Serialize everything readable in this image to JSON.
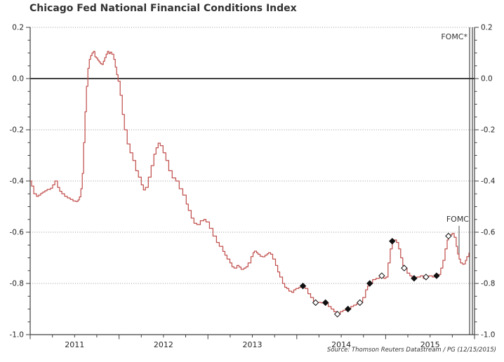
{
  "title": "Chicago Fed National Financial Conditions Index",
  "source_note": "Source: Thomson Reuters Datastream / PG (12/15/2015)",
  "annotations": {
    "fomc_upcoming_label": "FOMC*",
    "fomc_meeting_label": "FOMC"
  },
  "colors": {
    "line": "#c0504d",
    "axis": "#3f3f3f",
    "gridline": "#999999",
    "zero_line": "#000000",
    "marker_filled": "#111111",
    "marker_hollow_fill": "#ffffff",
    "annotation_line": "#4d4d4d",
    "text": "#262626"
  },
  "chart_data": {
    "type": "line",
    "title": "Chicago Fed National Financial Conditions Index",
    "xlabel": "",
    "ylabel": "",
    "legend": "none",
    "grid": "dotted horizontal",
    "x_axis": {
      "range": [
        2011.0,
        2016.0
      ],
      "year_labels": [
        "2011",
        "2012",
        "2013",
        "2014",
        "2015"
      ],
      "year_label_centers": [
        2011.5,
        2012.5,
        2013.5,
        2014.5,
        2015.5
      ],
      "minor_tick_step_years": 0.25,
      "major_tick_step_years": 1.0
    },
    "y_axis": {
      "range": [
        -1.0,
        0.2
      ],
      "tick_labels": [
        "0.2",
        "0.0",
        "-0.2",
        "-0.4",
        "-0.6",
        "-0.8",
        "-1.0"
      ],
      "tick_values": [
        0.2,
        0.0,
        -0.2,
        -0.4,
        -0.6,
        -0.8,
        -1.0
      ],
      "minor_tick_step": 0.05,
      "sides": [
        "left",
        "right"
      ],
      "zero_line_solid": true
    },
    "gridlines_dotted_at": [
      0.2,
      -0.2,
      -0.4,
      -0.6,
      -0.8
    ],
    "series": [
      {
        "name": "Chicago Fed National Financial Conditions Index (weekly)",
        "color": "#c0504d",
        "points": [
          [
            2011.0,
            -0.4
          ],
          [
            2011.016,
            -0.42
          ],
          [
            2011.04,
            -0.45
          ],
          [
            2011.071,
            -0.46
          ],
          [
            2011.095,
            -0.455
          ],
          [
            2011.119,
            -0.448
          ],
          [
            2011.142,
            -0.443
          ],
          [
            2011.166,
            -0.438
          ],
          [
            2011.19,
            -0.433
          ],
          [
            2011.229,
            -0.428
          ],
          [
            2011.253,
            -0.415
          ],
          [
            2011.277,
            -0.4
          ],
          [
            2011.308,
            -0.425
          ],
          [
            2011.332,
            -0.44
          ],
          [
            2011.356,
            -0.45
          ],
          [
            2011.388,
            -0.46
          ],
          [
            2011.419,
            -0.466
          ],
          [
            2011.451,
            -0.472
          ],
          [
            2011.482,
            -0.478
          ],
          [
            2011.514,
            -0.48
          ],
          [
            2011.538,
            -0.474
          ],
          [
            2011.554,
            -0.462
          ],
          [
            2011.57,
            -0.43
          ],
          [
            2011.586,
            -0.37
          ],
          [
            2011.601,
            -0.25
          ],
          [
            2011.617,
            -0.13
          ],
          [
            2011.633,
            -0.03
          ],
          [
            2011.649,
            0.04
          ],
          [
            2011.665,
            0.075
          ],
          [
            2011.68,
            0.09
          ],
          [
            2011.696,
            0.1
          ],
          [
            2011.712,
            0.106
          ],
          [
            2011.728,
            0.085
          ],
          [
            2011.744,
            0.08
          ],
          [
            2011.76,
            0.072
          ],
          [
            2011.775,
            0.065
          ],
          [
            2011.791,
            0.058
          ],
          [
            2011.807,
            0.055
          ],
          [
            2011.823,
            0.068
          ],
          [
            2011.839,
            0.082
          ],
          [
            2011.855,
            0.095
          ],
          [
            2011.87,
            0.106
          ],
          [
            2011.886,
            0.098
          ],
          [
            2011.902,
            0.103
          ],
          [
            2011.918,
            0.095
          ],
          [
            2011.941,
            0.075
          ],
          [
            2011.957,
            0.045
          ],
          [
            2011.973,
            0.015
          ],
          [
            2011.989,
            -0.01
          ],
          [
            2012.013,
            -0.065
          ],
          [
            2012.036,
            -0.14
          ],
          [
            2012.06,
            -0.2
          ],
          [
            2012.092,
            -0.255
          ],
          [
            2012.123,
            -0.29
          ],
          [
            2012.155,
            -0.32
          ],
          [
            2012.187,
            -0.36
          ],
          [
            2012.218,
            -0.385
          ],
          [
            2012.25,
            -0.415
          ],
          [
            2012.274,
            -0.435
          ],
          [
            2012.297,
            -0.425
          ],
          [
            2012.329,
            -0.385
          ],
          [
            2012.361,
            -0.34
          ],
          [
            2012.392,
            -0.295
          ],
          [
            2012.416,
            -0.27
          ],
          [
            2012.44,
            -0.252
          ],
          [
            2012.464,
            -0.262
          ],
          [
            2012.495,
            -0.29
          ],
          [
            2012.527,
            -0.32
          ],
          [
            2012.559,
            -0.36
          ],
          [
            2012.598,
            -0.388
          ],
          [
            2012.638,
            -0.4
          ],
          [
            2012.677,
            -0.43
          ],
          [
            2012.717,
            -0.455
          ],
          [
            2012.756,
            -0.49
          ],
          [
            2012.78,
            -0.515
          ],
          [
            2012.812,
            -0.545
          ],
          [
            2012.843,
            -0.565
          ],
          [
            2012.875,
            -0.57
          ],
          [
            2012.915,
            -0.555
          ],
          [
            2012.954,
            -0.55
          ],
          [
            2012.978,
            -0.56
          ],
          [
            2013.017,
            -0.585
          ],
          [
            2013.057,
            -0.615
          ],
          [
            2013.096,
            -0.64
          ],
          [
            2013.128,
            -0.655
          ],
          [
            2013.168,
            -0.675
          ],
          [
            2013.191,
            -0.69
          ],
          [
            2013.215,
            -0.705
          ],
          [
            2013.247,
            -0.72
          ],
          [
            2013.27,
            -0.735
          ],
          [
            2013.294,
            -0.74
          ],
          [
            2013.326,
            -0.73
          ],
          [
            2013.35,
            -0.736
          ],
          [
            2013.373,
            -0.745
          ],
          [
            2013.405,
            -0.74
          ],
          [
            2013.429,
            -0.735
          ],
          [
            2013.452,
            -0.72
          ],
          [
            2013.484,
            -0.695
          ],
          [
            2013.508,
            -0.68
          ],
          [
            2013.523,
            -0.674
          ],
          [
            2013.547,
            -0.68
          ],
          [
            2013.563,
            -0.686
          ],
          [
            2013.587,
            -0.694
          ],
          [
            2013.61,
            -0.696
          ],
          [
            2013.642,
            -0.69
          ],
          [
            2013.666,
            -0.684
          ],
          [
            2013.682,
            -0.68
          ],
          [
            2013.705,
            -0.686
          ],
          [
            2013.729,
            -0.705
          ],
          [
            2013.761,
            -0.73
          ],
          [
            2013.785,
            -0.755
          ],
          [
            2013.808,
            -0.775
          ],
          [
            2013.84,
            -0.8
          ],
          [
            2013.864,
            -0.815
          ],
          [
            2013.887,
            -0.82
          ],
          [
            2013.911,
            -0.83
          ],
          [
            2013.943,
            -0.835
          ],
          [
            2013.966,
            -0.825
          ],
          [
            2013.99,
            -0.82
          ],
          [
            2014.022,
            -0.816
          ],
          [
            2014.046,
            -0.814
          ],
          [
            2014.069,
            -0.81
          ],
          [
            2014.093,
            -0.82
          ],
          [
            2014.125,
            -0.84
          ],
          [
            2014.156,
            -0.855
          ],
          [
            2014.188,
            -0.87
          ],
          [
            2014.212,
            -0.875
          ],
          [
            2014.244,
            -0.874
          ],
          [
            2014.275,
            -0.876
          ],
          [
            2014.307,
            -0.874
          ],
          [
            2014.323,
            -0.875
          ],
          [
            2014.354,
            -0.89
          ],
          [
            2014.386,
            -0.9
          ],
          [
            2014.418,
            -0.91
          ],
          [
            2014.457,
            -0.92
          ],
          [
            2014.489,
            -0.91
          ],
          [
            2014.52,
            -0.905
          ],
          [
            2014.552,
            -0.9
          ],
          [
            2014.576,
            -0.9
          ],
          [
            2014.608,
            -0.89
          ],
          [
            2014.639,
            -0.885
          ],
          [
            2014.671,
            -0.88
          ],
          [
            2014.71,
            -0.875
          ],
          [
            2014.742,
            -0.855
          ],
          [
            2014.774,
            -0.825
          ],
          [
            2014.797,
            -0.81
          ],
          [
            2014.821,
            -0.8
          ],
          [
            2014.853,
            -0.785
          ],
          [
            2014.892,
            -0.78
          ],
          [
            2014.932,
            -0.775
          ],
          [
            2014.956,
            -0.77
          ],
          [
            2014.979,
            -0.78
          ],
          [
            2015.003,
            -0.775
          ],
          [
            2015.027,
            -0.72
          ],
          [
            2015.051,
            -0.665
          ],
          [
            2015.074,
            -0.635
          ],
          [
            2015.098,
            -0.63
          ],
          [
            2015.122,
            -0.64
          ],
          [
            2015.146,
            -0.665
          ],
          [
            2015.169,
            -0.7
          ],
          [
            2015.193,
            -0.73
          ],
          [
            2015.209,
            -0.74
          ],
          [
            2015.241,
            -0.76
          ],
          [
            2015.272,
            -0.77
          ],
          [
            2015.296,
            -0.775
          ],
          [
            2015.32,
            -0.78
          ],
          [
            2015.351,
            -0.775
          ],
          [
            2015.391,
            -0.77
          ],
          [
            2015.423,
            -0.78
          ],
          [
            2015.454,
            -0.775
          ],
          [
            2015.486,
            -0.77
          ],
          [
            2015.525,
            -0.775
          ],
          [
            2015.549,
            -0.77
          ],
          [
            2015.573,
            -0.77
          ],
          [
            2015.597,
            -0.765
          ],
          [
            2015.62,
            -0.74
          ],
          [
            2015.644,
            -0.71
          ],
          [
            2015.668,
            -0.665
          ],
          [
            2015.692,
            -0.63
          ],
          [
            2015.707,
            -0.615
          ],
          [
            2015.731,
            -0.61
          ],
          [
            2015.747,
            -0.605
          ],
          [
            2015.771,
            -0.62
          ],
          [
            2015.794,
            -0.655
          ],
          [
            2015.81,
            -0.685
          ],
          [
            2015.826,
            -0.705
          ],
          [
            2015.842,
            -0.72
          ],
          [
            2015.866,
            -0.725
          ],
          [
            2015.881,
            -0.724
          ],
          [
            2015.897,
            -0.71
          ],
          [
            2015.913,
            -0.695
          ],
          [
            2015.937,
            -0.68
          ]
        ]
      }
    ],
    "fomc_markers": {
      "filled": [
        [
          2014.069,
          -0.81
        ],
        [
          2014.323,
          -0.875
        ],
        [
          2014.576,
          -0.9
        ],
        [
          2014.821,
          -0.8
        ],
        [
          2015.074,
          -0.635
        ],
        [
          2015.32,
          -0.78
        ],
        [
          2015.573,
          -0.77
        ]
      ],
      "hollow": [
        [
          2014.212,
          -0.875
        ],
        [
          2014.457,
          -0.92
        ],
        [
          2014.71,
          -0.875
        ],
        [
          2014.956,
          -0.77
        ],
        [
          2015.209,
          -0.74
        ],
        [
          2015.454,
          -0.775
        ],
        [
          2015.707,
          -0.615
        ]
      ]
    },
    "fomc_upcoming": {
      "label": "FOMC*",
      "double_line_x": [
        2015.945,
        2015.976
      ]
    },
    "fomc_callout": {
      "label": "FOMC",
      "x": 2015.826,
      "value_top": -0.575,
      "value_bottom": -0.69
    }
  }
}
